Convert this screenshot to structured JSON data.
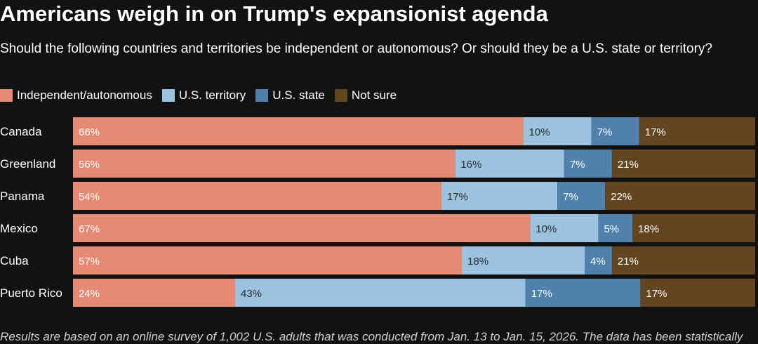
{
  "title": "Americans weigh in on Trump's expansionist agenda",
  "subtitle": "Should the following countries and territories be independent or autonomous? Or should they be a U.S. state or territory?",
  "footnote": "Results are based on an online survey of 1,002 U.S. adults that was conducted from Jan. 13 to Jan. 15, 2026. The data has been statistically",
  "colors": {
    "independent": "#e68a73",
    "territory": "#9bc3df",
    "state": "#4f81ac",
    "not_sure": "#634520",
    "background": "#121212"
  },
  "legend": [
    {
      "label": "Independent/autonomous",
      "color_key": "independent"
    },
    {
      "label": "U.S. territory",
      "color_key": "territory"
    },
    {
      "label": "U.S. state",
      "color_key": "state"
    },
    {
      "label": "Not sure",
      "color_key": "not_sure"
    }
  ],
  "chart_data": {
    "type": "bar",
    "orientation": "horizontal",
    "stacked": true,
    "unit": "%",
    "categories": [
      "Canada",
      "Greenland",
      "Panama",
      "Mexico",
      "Cuba",
      "Puerto Rico"
    ],
    "series": [
      {
        "name": "Independent/autonomous",
        "color_key": "independent",
        "values": [
          66,
          56,
          54,
          67,
          57,
          24
        ]
      },
      {
        "name": "U.S. territory",
        "color_key": "territory",
        "values": [
          10,
          16,
          17,
          10,
          18,
          43
        ]
      },
      {
        "name": "U.S. state",
        "color_key": "state",
        "values": [
          7,
          7,
          7,
          5,
          4,
          17
        ]
      },
      {
        "name": "Not sure",
        "color_key": "not_sure",
        "values": [
          17,
          21,
          22,
          18,
          21,
          17
        ]
      }
    ]
  }
}
